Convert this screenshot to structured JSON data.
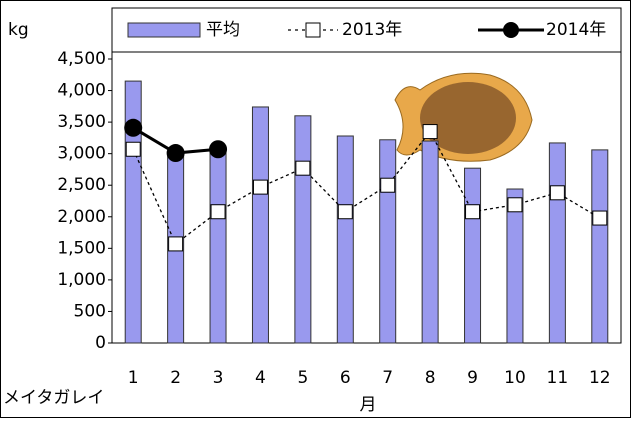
{
  "chart_data": {
    "type": "bar_line",
    "y_label": "kg",
    "x_label": "月",
    "caption": "メイタガレイ",
    "categories": [
      "1",
      "2",
      "3",
      "4",
      "5",
      "6",
      "7",
      "8",
      "9",
      "10",
      "11",
      "12"
    ],
    "series": [
      {
        "name": "平均",
        "kind": "bar",
        "color": "#9999ee",
        "values": [
          4150,
          3000,
          3100,
          3740,
          3600,
          3280,
          3220,
          3200,
          2770,
          2440,
          3170,
          3060
        ]
      },
      {
        "name": "2013年",
        "kind": "line",
        "style": "dotted-square",
        "color": "#000000",
        "values": [
          3070,
          1570,
          2080,
          2470,
          2770,
          2080,
          2500,
          3350,
          2080,
          2190,
          2380,
          1980
        ]
      },
      {
        "name": "2014年",
        "kind": "line",
        "style": "solid-circle",
        "color": "#000000",
        "values": [
          3410,
          3010,
          3070,
          null,
          null,
          null,
          null,
          null,
          null,
          null,
          null,
          null
        ]
      }
    ],
    "ylim": [
      0,
      4500
    ],
    "yticks": [
      0,
      500,
      {
        "value": 1000,
        "label": "1,000"
      },
      {
        "value": 1500,
        "label": "1,500"
      },
      {
        "value": 2000,
        "label": "2,000"
      },
      {
        "value": 2500,
        "label": "2,500"
      },
      {
        "value": 3000,
        "label": "3,000"
      },
      {
        "value": 3500,
        "label": "3,500"
      },
      {
        "value": 4000,
        "label": "4,000"
      },
      {
        "value": 4500,
        "label": "4,500"
      }
    ],
    "grid": false
  }
}
